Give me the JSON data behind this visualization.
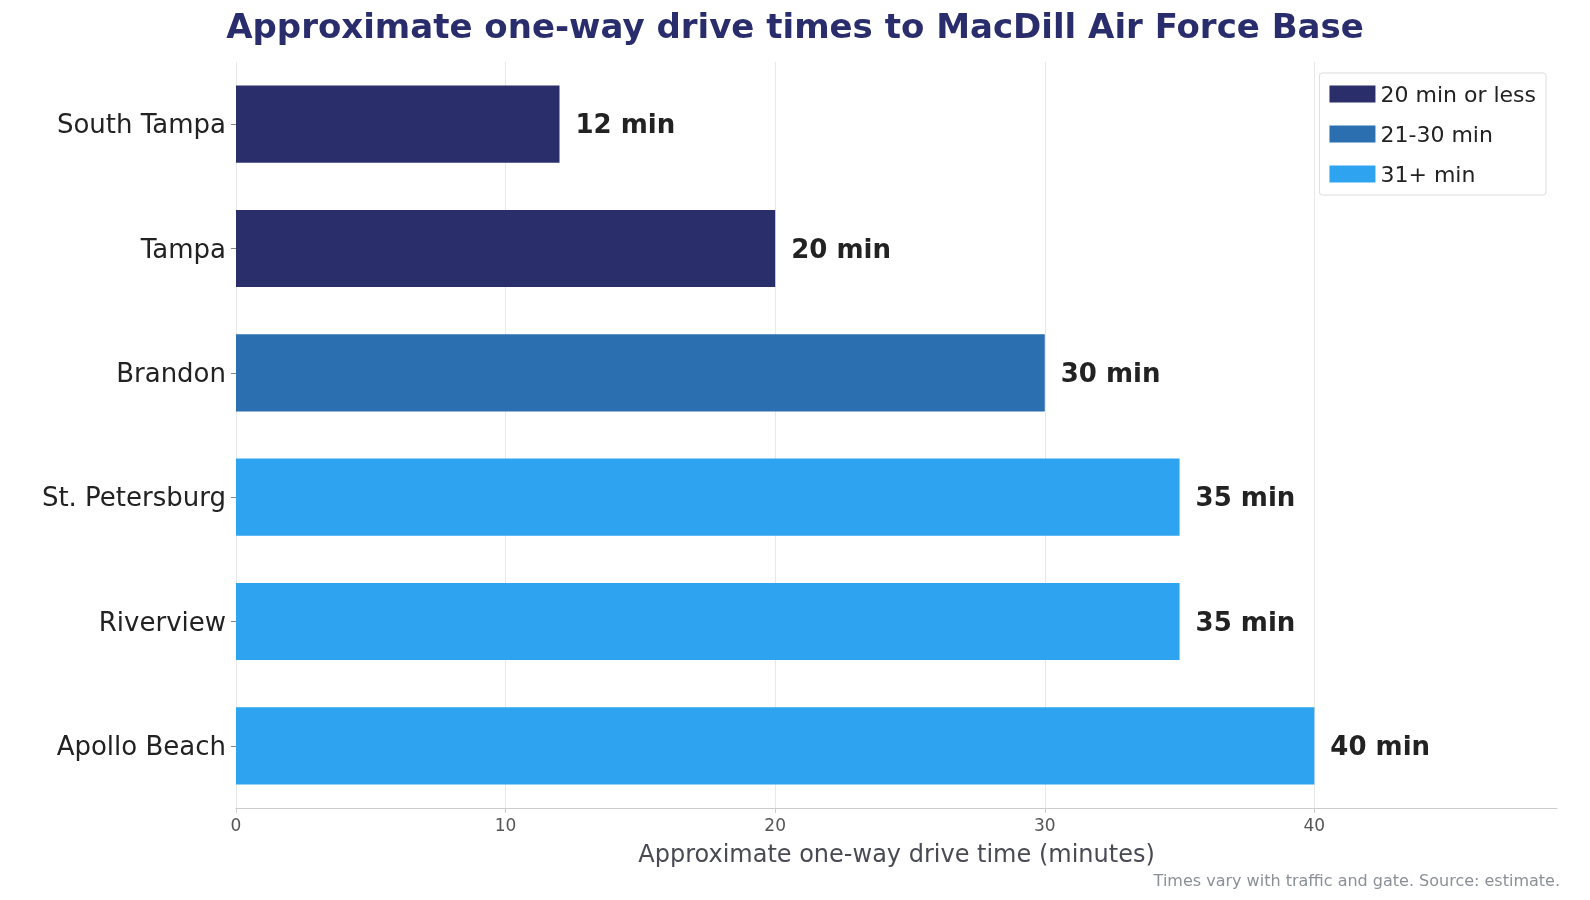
{
  "chart_data": {
    "type": "bar",
    "orientation": "horizontal",
    "stacked": true,
    "title": "Approximate one-way drive times to MacDill Air Force Base",
    "xlabel": "Approximate one-way drive time (minutes)",
    "categories": [
      "South Tampa",
      "Tampa",
      "Brandon",
      "St. Petersburg",
      "Riverview",
      "Apollo Beach"
    ],
    "series": [
      {
        "name": "20 min or less",
        "color": "#2a2f6b",
        "values": [
          12,
          20,
          null,
          null,
          null,
          null
        ],
        "value_labels": [
          "12 min",
          "20 min",
          null,
          null,
          null,
          null
        ]
      },
      {
        "name": "21-30 min",
        "color": "#2b6fb0",
        "values": [
          null,
          null,
          30,
          null,
          null,
          null
        ],
        "value_labels": [
          null,
          null,
          "30 min",
          null,
          null,
          null
        ]
      },
      {
        "name": "31+ min",
        "color": "#2ea3ef",
        "values": [
          null,
          null,
          null,
          35,
          35,
          40
        ],
        "value_labels": [
          null,
          null,
          null,
          "35 min",
          "35 min",
          "40 min"
        ]
      }
    ],
    "xlim": [
      0,
      49
    ],
    "xticks": [
      0,
      10,
      20,
      30,
      40
    ],
    "grid": "x",
    "legend": "top right",
    "annotations": [
      "Times vary with traffic and gate. Source: estimate."
    ]
  }
}
